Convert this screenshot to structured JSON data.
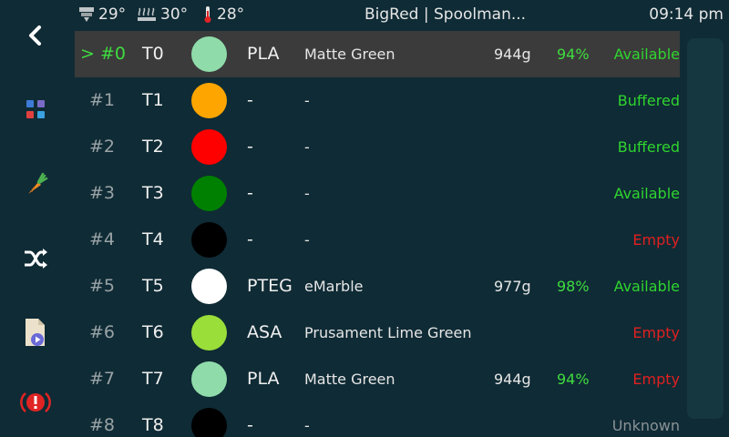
{
  "statusbar": {
    "nozzle_temp": "29°",
    "bed_temp": "30°",
    "chamber_temp": "28°",
    "title": "BigRed | Spoolman...",
    "time": "09:14 pm"
  },
  "sidebar": {
    "icons": [
      "back-icon",
      "apps-grid-icon",
      "carrot-icon",
      "shuffle-icon",
      "gcode-file-icon",
      "emergency-stop-icon"
    ]
  },
  "gates": [
    {
      "gate": "> #0",
      "tool": "T0",
      "color": "#8fdcaa",
      "material": "PLA",
      "name": "Matte Green",
      "weight": "944g",
      "pct": "94%",
      "status": "Available",
      "status_kind": "available",
      "selected": true
    },
    {
      "gate": "#1",
      "tool": "T1",
      "color": "#ffa500",
      "material": "-",
      "name": "-",
      "weight": "",
      "pct": "",
      "status": "Buffered",
      "status_kind": "buffered",
      "selected": false
    },
    {
      "gate": "#2",
      "tool": "T2",
      "color": "#ff0000",
      "material": "-",
      "name": "-",
      "weight": "",
      "pct": "",
      "status": "Buffered",
      "status_kind": "buffered",
      "selected": false
    },
    {
      "gate": "#3",
      "tool": "T3",
      "color": "#008000",
      "material": "-",
      "name": "-",
      "weight": "",
      "pct": "",
      "status": "Available",
      "status_kind": "available",
      "selected": false
    },
    {
      "gate": "#4",
      "tool": "T4",
      "color": "#000000",
      "material": "-",
      "name": "-",
      "weight": "",
      "pct": "",
      "status": "Empty",
      "status_kind": "empty",
      "selected": false
    },
    {
      "gate": "#5",
      "tool": "T5",
      "color": "#ffffff",
      "material": "PTEG",
      "name": "eMarble",
      "weight": "977g",
      "pct": "98%",
      "status": "Available",
      "status_kind": "available",
      "selected": false
    },
    {
      "gate": "#6",
      "tool": "T6",
      "color": "#9ade3a",
      "material": "ASA",
      "name": "Prusament Lime Green",
      "weight": "",
      "pct": "",
      "status": "Empty",
      "status_kind": "empty",
      "selected": false
    },
    {
      "gate": "#7",
      "tool": "T7",
      "color": "#8fdcaa",
      "material": "PLA",
      "name": "Matte Green",
      "weight": "944g",
      "pct": "94%",
      "status": "Empty",
      "status_kind": "empty",
      "selected": false
    },
    {
      "gate": "#8",
      "tool": "T8",
      "color": "#000000",
      "material": "-",
      "name": "-",
      "weight": "",
      "pct": "",
      "status": "Unknown",
      "status_kind": "unknown",
      "selected": false
    }
  ]
}
